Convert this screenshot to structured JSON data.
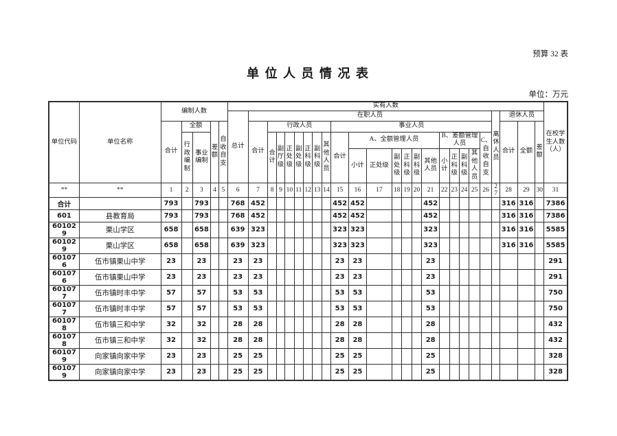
{
  "page": {
    "form_label": "预算 32 表",
    "title": "单 位 人 员 情 况 表",
    "unit_note": "单位：万元"
  },
  "table": {
    "header": {
      "unit_code": "单位代码",
      "unit_name": "单位名称",
      "staffing_group": "编制人数",
      "actual_group": "实有人数",
      "students": "在校学生人数（人）",
      "grand_total": "总计",
      "on_duty_group": "在职人员",
      "lixiu": "离休人员",
      "retired_group": "退休人员",
      "staffing_total": "合计",
      "staffing_full": "全额",
      "staffing_admin": "行政编制",
      "staffing_career": "事业编制",
      "staffing_diff": "差额",
      "staffing_self": "自收自支",
      "onduty_total": "合计",
      "admin_group": "行政人员",
      "career_group": "事业人员",
      "admin_total": "合计",
      "admin_deputy_dept": "副厅级",
      "admin_division": "正处级",
      "admin_deputy_division": "副处级",
      "admin_section": "正科级",
      "admin_deputy_section": "副科级",
      "admin_other": "其他人员",
      "career_total": "合计",
      "group_a": "A、全额管理人员",
      "group_b": "B、差额管理人员",
      "group_c": "C、自收自支",
      "a_subtotal": "小计",
      "a_division": "正处级",
      "a_deputy_division": "副处级",
      "a_section": "正科级",
      "a_deputy_section": "副科级",
      "a_other": "其他人员",
      "b_subtotal": "小计",
      "b_section": "正科级",
      "b_deputy_section": "副科级",
      "b_other": "其他人员",
      "retired_total": "合计",
      "retired_full": "全额",
      "retired_diff": "差额"
    },
    "column_numbers": [
      "**",
      "**",
      "1",
      "2",
      "3",
      "4",
      "5",
      "6",
      "7",
      "8",
      "9",
      "10",
      "11",
      "12",
      "13",
      "14",
      "15",
      "16",
      "17",
      "18",
      "19",
      "20",
      "21",
      "22",
      "23",
      "24",
      "25",
      "26",
      "27",
      "28",
      "29",
      "30",
      "31"
    ],
    "rows": [
      [
        "合计",
        "",
        "793",
        "",
        "793",
        "",
        "",
        "768",
        "452",
        "",
        "",
        "",
        "",
        "",
        "",
        "",
        "452",
        "452",
        "",
        "",
        "",
        "",
        "452",
        "",
        "",
        "",
        "",
        "",
        "",
        "316",
        "316",
        "",
        "7386"
      ],
      [
        "601",
        "县教育局",
        "793",
        "",
        "793",
        "",
        "",
        "768",
        "452",
        "",
        "",
        "",
        "",
        "",
        "",
        "",
        "452",
        "452",
        "",
        "",
        "",
        "",
        "452",
        "",
        "",
        "",
        "",
        "",
        "",
        "316",
        "316",
        "",
        "7386"
      ],
      [
        "601029",
        "栗山学区",
        "658",
        "",
        "658",
        "",
        "",
        "639",
        "323",
        "",
        "",
        "",
        "",
        "",
        "",
        "",
        "323",
        "323",
        "",
        "",
        "",
        "",
        "323",
        "",
        "",
        "",
        "",
        "",
        "",
        "316",
        "316",
        "",
        "5585"
      ],
      [
        "601029",
        "栗山学区",
        "658",
        "",
        "658",
        "",
        "",
        "639",
        "323",
        "",
        "",
        "",
        "",
        "",
        "",
        "",
        "323",
        "323",
        "",
        "",
        "",
        "",
        "323",
        "",
        "",
        "",
        "",
        "",
        "",
        "316",
        "316",
        "",
        "5585"
      ],
      [
        "601076",
        "伍市镇栗山中学",
        "23",
        "",
        "23",
        "",
        "",
        "23",
        "23",
        "",
        "",
        "",
        "",
        "",
        "",
        "",
        "23",
        "23",
        "",
        "",
        "",
        "",
        "23",
        "",
        "",
        "",
        "",
        "",
        "",
        "",
        "",
        "",
        "291"
      ],
      [
        "601076",
        "伍市镇栗山中学",
        "23",
        "",
        "23",
        "",
        "",
        "23",
        "23",
        "",
        "",
        "",
        "",
        "",
        "",
        "",
        "23",
        "23",
        "",
        "",
        "",
        "",
        "23",
        "",
        "",
        "",
        "",
        "",
        "",
        "",
        "",
        "",
        "291"
      ],
      [
        "601077",
        "伍市镇时丰中学",
        "57",
        "",
        "57",
        "",
        "",
        "53",
        "53",
        "",
        "",
        "",
        "",
        "",
        "",
        "",
        "53",
        "53",
        "",
        "",
        "",
        "",
        "53",
        "",
        "",
        "",
        "",
        "",
        "",
        "",
        "",
        "",
        "750"
      ],
      [
        "601077",
        "伍市镇时丰中学",
        "57",
        "",
        "57",
        "",
        "",
        "53",
        "53",
        "",
        "",
        "",
        "",
        "",
        "",
        "",
        "53",
        "53",
        "",
        "",
        "",
        "",
        "53",
        "",
        "",
        "",
        "",
        "",
        "",
        "",
        "",
        "",
        "750"
      ],
      [
        "601078",
        "伍市镇三和中学",
        "32",
        "",
        "32",
        "",
        "",
        "28",
        "28",
        "",
        "",
        "",
        "",
        "",
        "",
        "",
        "28",
        "28",
        "",
        "",
        "",
        "",
        "28",
        "",
        "",
        "",
        "",
        "",
        "",
        "",
        "",
        "",
        "432"
      ],
      [
        "601078",
        "伍市镇三和中学",
        "32",
        "",
        "32",
        "",
        "",
        "28",
        "28",
        "",
        "",
        "",
        "",
        "",
        "",
        "",
        "28",
        "28",
        "",
        "",
        "",
        "",
        "28",
        "",
        "",
        "",
        "",
        "",
        "",
        "",
        "",
        "",
        "432"
      ],
      [
        "601079",
        "向家镇向家中学",
        "23",
        "",
        "23",
        "",
        "",
        "25",
        "25",
        "",
        "",
        "",
        "",
        "",
        "",
        "",
        "25",
        "25",
        "",
        "",
        "",
        "",
        "25",
        "",
        "",
        "",
        "",
        "",
        "",
        "",
        "",
        "",
        "328"
      ],
      [
        "601079",
        "向家镇向家中学",
        "23",
        "",
        "23",
        "",
        "",
        "25",
        "25",
        "",
        "",
        "",
        "",
        "",
        "",
        "",
        "25",
        "25",
        "",
        "",
        "",
        "",
        "25",
        "",
        "",
        "",
        "",
        "",
        "",
        "",
        "",
        "",
        "328"
      ]
    ]
  }
}
